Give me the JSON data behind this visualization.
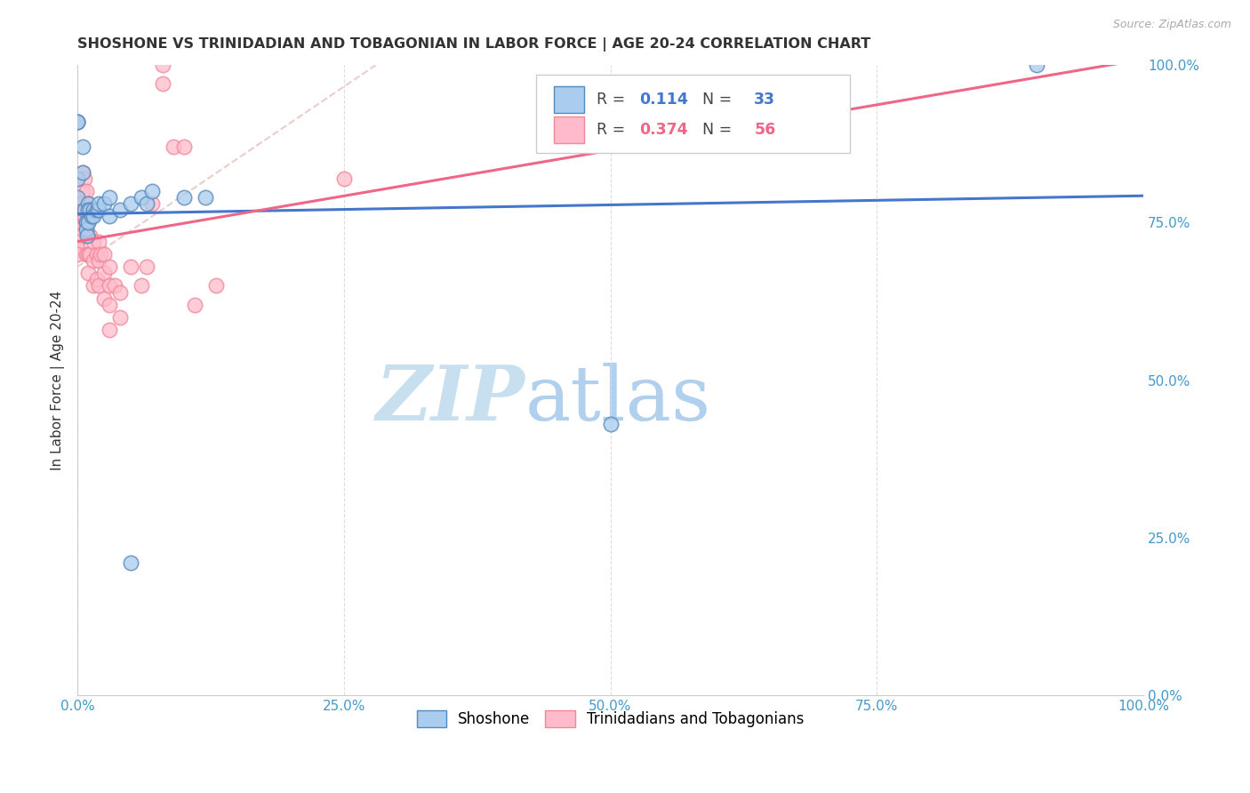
{
  "title": "SHOSHONE VS TRINIDADIAN AND TOBAGONIAN IN LABOR FORCE | AGE 20-24 CORRELATION CHART",
  "source": "Source: ZipAtlas.com",
  "ylabel": "In Labor Force | Age 20-24",
  "tick_labels": [
    "0.0%",
    "25.0%",
    "50.0%",
    "75.0%",
    "100.0%"
  ],
  "tick_vals": [
    0,
    0.25,
    0.5,
    0.75,
    1.0
  ],
  "xlim": [
    0,
    1
  ],
  "ylim": [
    0,
    1
  ],
  "legend_r_blue": "0.114",
  "legend_n_blue": "33",
  "legend_r_pink": "0.374",
  "legend_n_pink": "56",
  "blue_fill": "#AACCEE",
  "blue_edge": "#5588BB",
  "pink_fill": "#FFBBCC",
  "pink_edge": "#EE8899",
  "trendline_blue": "#4477CC",
  "trendline_pink": "#EE6688",
  "grid_color": "#DDDDDD",
  "bg_color": "#FFFFFF",
  "tick_color": "#4499CC",
  "label_color": "#333333",
  "watermark_zip_color": "#C8DFF0",
  "watermark_atlas_color": "#B0D0EE",
  "blue_scatter_x": [
    0.0,
    0.0,
    0.0,
    0.0,
    0.005,
    0.005,
    0.007,
    0.008,
    0.008,
    0.009,
    0.01,
    0.01,
    0.01,
    0.012,
    0.013,
    0.015,
    0.015,
    0.018,
    0.02,
    0.02,
    0.025,
    0.03,
    0.03,
    0.04,
    0.05,
    0.06,
    0.065,
    0.07,
    0.1,
    0.12,
    0.5,
    0.05,
    0.9
  ],
  "blue_scatter_y": [
    0.79,
    0.82,
    0.91,
    0.91,
    0.83,
    0.87,
    0.77,
    0.75,
    0.74,
    0.73,
    0.75,
    0.78,
    0.77,
    0.77,
    0.76,
    0.77,
    0.76,
    0.77,
    0.77,
    0.78,
    0.78,
    0.79,
    0.76,
    0.77,
    0.78,
    0.79,
    0.78,
    0.8,
    0.79,
    0.79,
    0.43,
    0.21,
    1.0
  ],
  "pink_scatter_x": [
    0.0,
    0.0,
    0.0,
    0.0,
    0.0,
    0.0,
    0.0,
    0.0,
    0.0,
    0.0,
    0.005,
    0.005,
    0.005,
    0.005,
    0.007,
    0.007,
    0.008,
    0.008,
    0.008,
    0.01,
    0.01,
    0.01,
    0.01,
    0.01,
    0.012,
    0.012,
    0.015,
    0.015,
    0.015,
    0.018,
    0.018,
    0.02,
    0.02,
    0.02,
    0.022,
    0.025,
    0.025,
    0.025,
    0.03,
    0.03,
    0.03,
    0.03,
    0.035,
    0.04,
    0.04,
    0.05,
    0.06,
    0.065,
    0.07,
    0.08,
    0.08,
    0.09,
    0.1,
    0.11,
    0.13,
    0.25
  ],
  "pink_scatter_y": [
    0.78,
    0.77,
    0.76,
    0.75,
    0.74,
    0.73,
    0.72,
    0.71,
    0.7,
    0.91,
    0.83,
    0.8,
    0.78,
    0.76,
    0.82,
    0.76,
    0.8,
    0.75,
    0.7,
    0.78,
    0.75,
    0.73,
    0.7,
    0.67,
    0.73,
    0.7,
    0.72,
    0.69,
    0.65,
    0.7,
    0.66,
    0.72,
    0.69,
    0.65,
    0.7,
    0.7,
    0.67,
    0.63,
    0.68,
    0.65,
    0.62,
    0.58,
    0.65,
    0.64,
    0.6,
    0.68,
    0.65,
    0.68,
    0.78,
    1.0,
    0.97,
    0.87,
    0.87,
    0.62,
    0.65,
    0.82
  ],
  "ref_line_x": [
    0.0,
    0.28
  ],
  "ref_line_y": [
    0.68,
    1.0
  ]
}
